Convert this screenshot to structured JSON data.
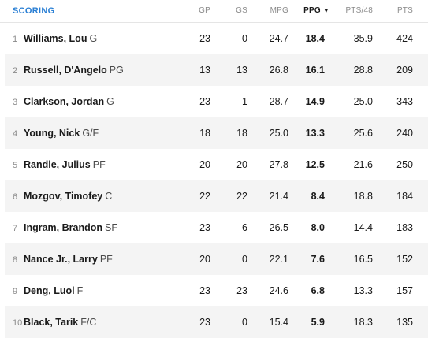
{
  "header": {
    "title": "SCORING",
    "columns": [
      "GP",
      "GS",
      "MPG",
      "PPG",
      "PTS/48",
      "PTS"
    ],
    "sort_icon": "▼"
  },
  "rows": [
    {
      "rank": "1",
      "name": "Williams, Lou",
      "pos": "G",
      "gp": "23",
      "gs": "0",
      "mpg": "24.7",
      "ppg": "18.4",
      "pts48": "35.9",
      "pts": "424"
    },
    {
      "rank": "2",
      "name": "Russell, D'Angelo",
      "pos": "PG",
      "gp": "13",
      "gs": "13",
      "mpg": "26.8",
      "ppg": "16.1",
      "pts48": "28.8",
      "pts": "209"
    },
    {
      "rank": "3",
      "name": "Clarkson, Jordan",
      "pos": "G",
      "gp": "23",
      "gs": "1",
      "mpg": "28.7",
      "ppg": "14.9",
      "pts48": "25.0",
      "pts": "343"
    },
    {
      "rank": "4",
      "name": "Young, Nick",
      "pos": "G/F",
      "gp": "18",
      "gs": "18",
      "mpg": "25.0",
      "ppg": "13.3",
      "pts48": "25.6",
      "pts": "240"
    },
    {
      "rank": "5",
      "name": "Randle, Julius",
      "pos": "PF",
      "gp": "20",
      "gs": "20",
      "mpg": "27.8",
      "ppg": "12.5",
      "pts48": "21.6",
      "pts": "250"
    },
    {
      "rank": "6",
      "name": "Mozgov, Timofey",
      "pos": "C",
      "gp": "22",
      "gs": "22",
      "mpg": "21.4",
      "ppg": "8.4",
      "pts48": "18.8",
      "pts": "184"
    },
    {
      "rank": "7",
      "name": "Ingram, Brandon",
      "pos": "SF",
      "gp": "23",
      "gs": "6",
      "mpg": "26.5",
      "ppg": "8.0",
      "pts48": "14.4",
      "pts": "183"
    },
    {
      "rank": "8",
      "name": "Nance Jr., Larry",
      "pos": "PF",
      "gp": "20",
      "gs": "0",
      "mpg": "22.1",
      "ppg": "7.6",
      "pts48": "16.5",
      "pts": "152"
    },
    {
      "rank": "9",
      "name": "Deng, Luol",
      "pos": "F",
      "gp": "23",
      "gs": "23",
      "mpg": "24.6",
      "ppg": "6.8",
      "pts48": "13.3",
      "pts": "157"
    },
    {
      "rank": "10",
      "name": "Black, Tarik",
      "pos": "F/C",
      "gp": "23",
      "gs": "0",
      "mpg": "15.4",
      "ppg": "5.9",
      "pts48": "18.3",
      "pts": "135"
    }
  ],
  "colors": {
    "accent": "#2a7fd4",
    "alt_row": "#f4f4f4",
    "muted": "#8a8a8a"
  }
}
